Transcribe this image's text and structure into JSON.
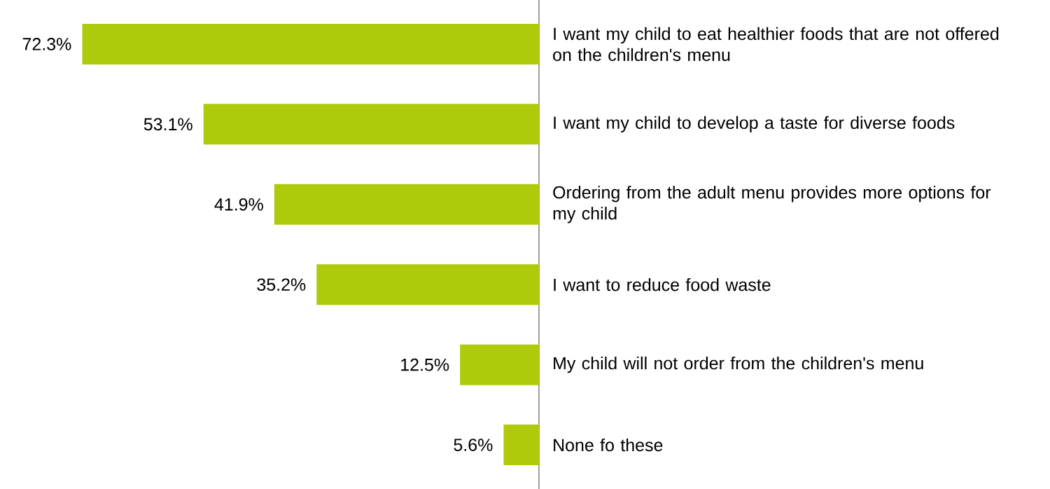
{
  "chart_data": {
    "type": "bar",
    "orientation": "horizontal",
    "categories": [
      "I want my child to eat healthier foods that are not offered on the children's menu",
      "I want my child to develop a taste for diverse foods",
      "Ordering from the adult menu provides more options for my child",
      "I want to reduce food waste",
      "My child will not order from the children's menu",
      "None fo these"
    ],
    "values": [
      72.3,
      53.1,
      41.9,
      35.2,
      12.5,
      5.6
    ],
    "value_labels": [
      "72.3%",
      "53.1%",
      "41.9%",
      "35.2%",
      "12.5%",
      "5.6%"
    ],
    "color": "#afca0b"
  }
}
